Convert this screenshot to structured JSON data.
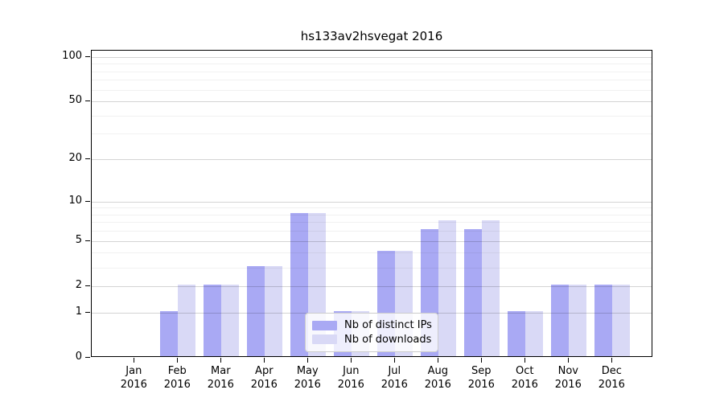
{
  "chart_data": {
    "type": "bar",
    "title": "hs133av2hsvegat 2016",
    "categories": [
      "Jan",
      "Feb",
      "Mar",
      "Apr",
      "May",
      "Jun",
      "Jul",
      "Aug",
      "Sep",
      "Oct",
      "Nov",
      "Dec"
    ],
    "year": "2016",
    "series": [
      {
        "name": "Nb of distinct IPs",
        "color": "#a9a9f4",
        "values": [
          0,
          1,
          2,
          3,
          8,
          1,
          4,
          6,
          6,
          1,
          2,
          2
        ]
      },
      {
        "name": "Nb of downloads",
        "color": "#d9d9f6",
        "values": [
          0,
          2,
          2,
          3,
          8,
          1,
          4,
          7,
          7,
          1,
          2,
          2
        ]
      }
    ],
    "yscale": "log1p",
    "y_ticks": [
      0,
      1,
      2,
      5,
      10,
      20,
      50,
      100
    ],
    "ylim": [
      0,
      110
    ],
    "grid": "horizontal major and minor, drawn over bars",
    "legend_position": "inside lower-center"
  }
}
